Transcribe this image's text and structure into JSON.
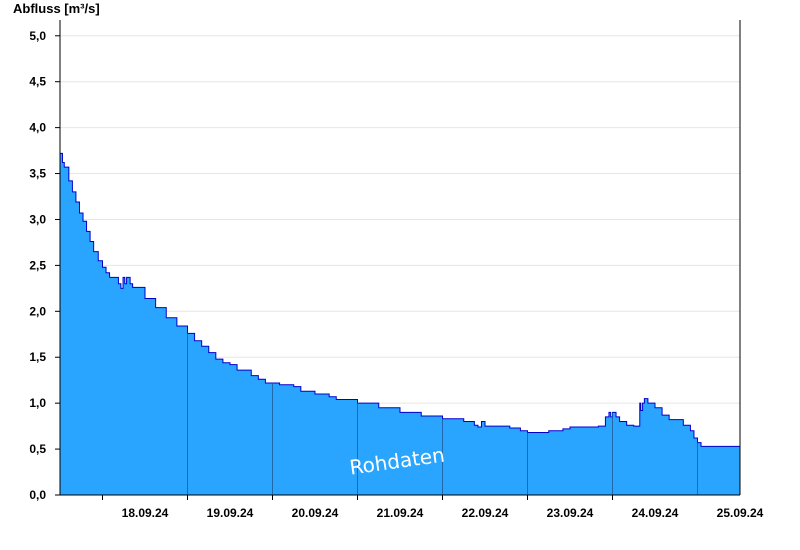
{
  "chart_data": {
    "type": "area",
    "ylabel": "Abfluss [m³/s]",
    "ylim": [
      0,
      5.15
    ],
    "yticks": [
      "0,0",
      "0,5",
      "1,0",
      "1,5",
      "2,0",
      "2,5",
      "3,0",
      "3,5",
      "4,0",
      "4,5",
      "5,0"
    ],
    "ytick_values": [
      0,
      0.5,
      1.0,
      1.5,
      2.0,
      2.5,
      3.0,
      3.5,
      4.0,
      4.5,
      5.0
    ],
    "xlim": [
      "17.09.24 12:00",
      "25.09.24 12:00"
    ],
    "xticks": [
      "18.09.24",
      "19.09.24",
      "20.09.24",
      "21.09.24",
      "22.09.24",
      "23.09.24",
      "24.09.24",
      "25.09.24"
    ],
    "day_lines": [
      "18.09.24",
      "19.09.24",
      "20.09.24",
      "21.09.24",
      "22.09.24",
      "23.09.24",
      "24.09.24",
      "25.09.24"
    ],
    "grid": "horizontal",
    "watermark": "Rohdaten",
    "colors": {
      "fill": "#2aa5ff",
      "line": "#0000cc",
      "grid": "#e6e6e6",
      "axis": "#000000"
    },
    "series": [
      {
        "x_hours": [
          0,
          0.7,
          1.2,
          2.5,
          3.5,
          4.5,
          5.5,
          6.5,
          7.5,
          8.5,
          9.5,
          10.8,
          12,
          13,
          14,
          15.5,
          16.5,
          17.2,
          17.8,
          18.3,
          18.8,
          19.8,
          20.5,
          24,
          27,
          30,
          33,
          36,
          38,
          40,
          42,
          44,
          46,
          48,
          50,
          54,
          56,
          58,
          62,
          66,
          68,
          72,
          76,
          78,
          84,
          90,
          96,
          102,
          108,
          114,
          117,
          118,
          119,
          120,
          127,
          130,
          132,
          138,
          142,
          144,
          152,
          154,
          155,
          155.5,
          156,
          157,
          158,
          160,
          162,
          163,
          163.7,
          164,
          164.5,
          165,
          166,
          168,
          170,
          172,
          176,
          178,
          179,
          180,
          181,
          192
        ],
        "y": [
          3.72,
          3.62,
          3.57,
          3.42,
          3.3,
          3.19,
          3.07,
          2.98,
          2.87,
          2.76,
          2.65,
          2.55,
          2.48,
          2.42,
          2.37,
          2.37,
          2.3,
          2.25,
          2.37,
          2.3,
          2.37,
          2.3,
          2.26,
          2.14,
          2.04,
          1.93,
          1.84,
          1.76,
          1.68,
          1.62,
          1.55,
          1.48,
          1.44,
          1.42,
          1.36,
          1.3,
          1.26,
          1.22,
          1.2,
          1.18,
          1.13,
          1.1,
          1.07,
          1.04,
          1.0,
          0.95,
          0.9,
          0.86,
          0.83,
          0.8,
          0.76,
          0.74,
          0.8,
          0.75,
          0.73,
          0.7,
          0.68,
          0.7,
          0.72,
          0.74,
          0.75,
          0.85,
          0.9,
          0.85,
          0.9,
          0.85,
          0.8,
          0.76,
          0.75,
          0.75,
          1.0,
          0.92,
          1.0,
          1.05,
          1.0,
          0.95,
          0.87,
          0.82,
          0.76,
          0.7,
          0.62,
          0.57,
          0.53,
          0.52
        ]
      }
    ]
  }
}
